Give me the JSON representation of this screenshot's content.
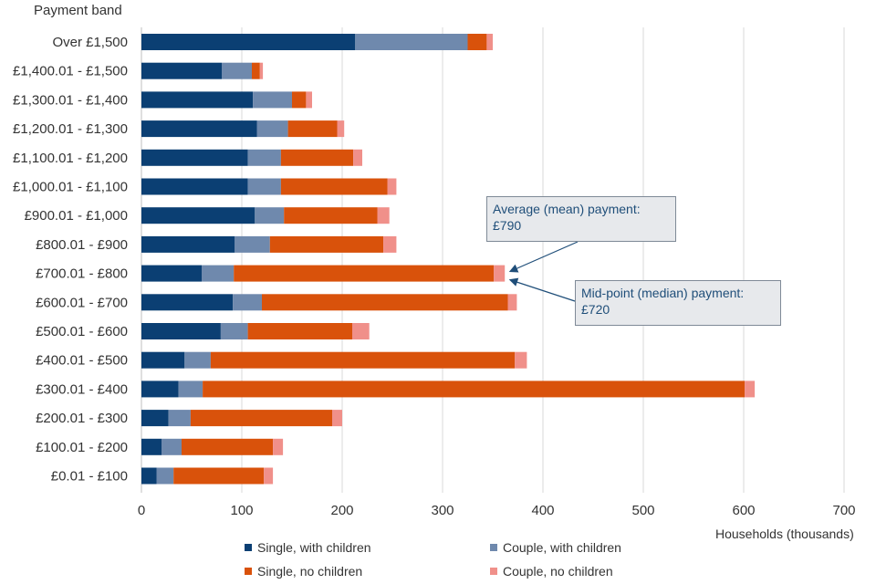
{
  "chart_data": {
    "type": "bar",
    "orientation": "horizontal",
    "stacked": true,
    "ylabel": "Payment band",
    "xlabel": "Households (thousands)",
    "xlim": [
      0,
      700
    ],
    "xticks": [
      0,
      100,
      200,
      300,
      400,
      500,
      600,
      700
    ],
    "grid": true,
    "legend_position": "bottom",
    "categories": [
      "Over £1,500",
      "£1,400.01 - £1,500",
      "£1,300.01 - £1,400",
      "£1,200.01 - £1,300",
      "£1,100.01 - £1,200",
      "£1,000.01 - £1,100",
      "£900.01 - £1,000",
      "£800.01 - £900",
      "£700.01 - £800",
      "£600.01 - £700",
      "£500.01 - £600",
      "£400.01 - £500",
      "£300.01 - £400",
      "£200.01 - £300",
      "£100.01 - £200",
      "£0.01 - £100"
    ],
    "series": [
      {
        "name": "Single, with children",
        "color": "#0b3f73",
        "values": [
          213,
          80,
          111,
          115,
          106,
          106,
          113,
          93,
          60,
          91,
          79,
          43,
          37,
          27,
          20,
          15
        ]
      },
      {
        "name": "Couple, with children",
        "color": "#6f89ad",
        "values": [
          112,
          30,
          39,
          31,
          33,
          33,
          29,
          35,
          32,
          29,
          27,
          26,
          24,
          22,
          20,
          17
        ]
      },
      {
        "name": "Single, no children",
        "color": "#d9520b",
        "values": [
          19,
          8,
          14,
          49,
          72,
          106,
          93,
          113,
          259,
          245,
          104,
          303,
          540,
          141,
          91,
          90
        ]
      },
      {
        "name": "Couple, no children",
        "color": "#f0908a",
        "values": [
          6,
          3,
          6,
          7,
          9,
          9,
          12,
          13,
          11,
          9,
          17,
          12,
          10,
          10,
          10,
          9
        ]
      }
    ],
    "annotations": [
      {
        "title": "Average (mean) payment:",
        "value": "£790"
      },
      {
        "title": "Mid-point (median) payment:",
        "value": "£720"
      }
    ]
  }
}
